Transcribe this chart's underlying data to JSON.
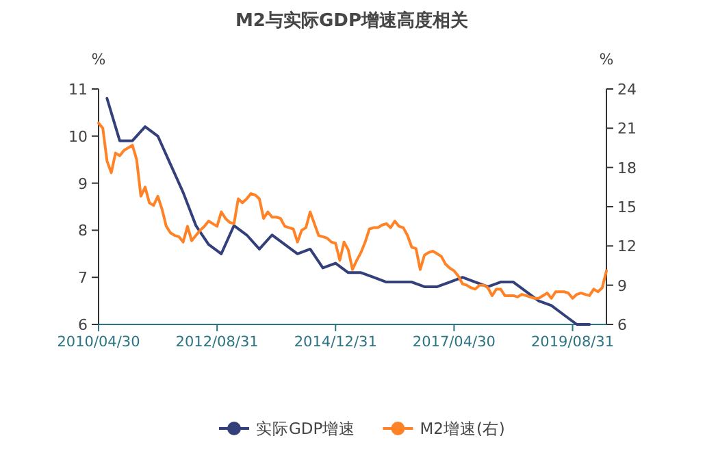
{
  "chart_data": {
    "type": "line",
    "title": "M2与实际GDP增速高度相关",
    "ylabel": "%",
    "y2label": "%",
    "xlim": [
      "2010-04",
      "2020-04"
    ],
    "xticks": [
      {
        "value": "2010-04",
        "label": "2010/04/30"
      },
      {
        "value": "2012-08",
        "label": "2012/08/31"
      },
      {
        "value": "2014-12",
        "label": "2014/12/31"
      },
      {
        "value": "2017-04",
        "label": "2017/04/30"
      },
      {
        "value": "2019-08",
        "label": "2019/08/31"
      }
    ],
    "ylim": [
      6,
      11
    ],
    "yticks": [
      6,
      7,
      8,
      9,
      10,
      11
    ],
    "y2lim": [
      6,
      24
    ],
    "y2ticks": [
      6,
      9,
      12,
      15,
      18,
      21,
      24
    ],
    "grid": false,
    "legend": "bottom",
    "series": [
      {
        "name": "实际GDP增速",
        "color": "#33407a",
        "x": [
          "2010-06",
          "2010-09",
          "2010-12",
          "2011-03",
          "2011-06",
          "2011-09",
          "2011-12",
          "2012-03",
          "2012-06",
          "2012-09",
          "2012-12",
          "2013-03",
          "2013-06",
          "2013-09",
          "2013-12",
          "2014-03",
          "2014-06",
          "2014-09",
          "2014-12",
          "2015-03",
          "2015-06",
          "2015-09",
          "2015-12",
          "2016-03",
          "2016-06",
          "2016-09",
          "2016-12",
          "2017-03",
          "2017-06",
          "2017-09",
          "2017-12",
          "2018-03",
          "2018-06",
          "2018-09",
          "2018-12",
          "2019-03",
          "2019-06",
          "2019-09",
          "2019-12"
        ],
        "values": [
          10.8,
          9.9,
          9.9,
          10.2,
          10.0,
          9.4,
          8.8,
          8.1,
          7.7,
          7.5,
          8.1,
          7.9,
          7.6,
          7.9,
          7.7,
          7.5,
          7.6,
          7.2,
          7.3,
          7.1,
          7.1,
          7.0,
          6.9,
          6.9,
          6.9,
          6.8,
          6.8,
          6.9,
          7.0,
          6.9,
          6.8,
          6.9,
          6.9,
          6.7,
          6.5,
          6.4,
          6.2,
          6.0,
          6.0
        ]
      },
      {
        "name": "M2增速(右)",
        "color": "#ff8326",
        "axis": "y2",
        "x": [
          "2010-04",
          "2010-05",
          "2010-06",
          "2010-07",
          "2010-08",
          "2010-09",
          "2010-10",
          "2010-11",
          "2010-12",
          "2011-01",
          "2011-02",
          "2011-03",
          "2011-04",
          "2011-05",
          "2011-06",
          "2011-07",
          "2011-08",
          "2011-09",
          "2011-10",
          "2011-11",
          "2011-12",
          "2012-01",
          "2012-02",
          "2012-03",
          "2012-04",
          "2012-05",
          "2012-06",
          "2012-07",
          "2012-08",
          "2012-09",
          "2012-10",
          "2012-11",
          "2012-12",
          "2013-01",
          "2013-02",
          "2013-03",
          "2013-04",
          "2013-05",
          "2013-06",
          "2013-07",
          "2013-08",
          "2013-09",
          "2013-10",
          "2013-11",
          "2013-12",
          "2014-01",
          "2014-02",
          "2014-03",
          "2014-04",
          "2014-05",
          "2014-06",
          "2014-07",
          "2014-08",
          "2014-09",
          "2014-10",
          "2014-11",
          "2014-12",
          "2015-01",
          "2015-02",
          "2015-03",
          "2015-04",
          "2015-05",
          "2015-06",
          "2015-07",
          "2015-08",
          "2015-09",
          "2015-10",
          "2015-11",
          "2015-12",
          "2016-01",
          "2016-02",
          "2016-03",
          "2016-04",
          "2016-05",
          "2016-06",
          "2016-07",
          "2016-08",
          "2016-09",
          "2016-10",
          "2016-11",
          "2016-12",
          "2017-01",
          "2017-02",
          "2017-03",
          "2017-04",
          "2017-05",
          "2017-06",
          "2017-07",
          "2017-08",
          "2017-09",
          "2017-10",
          "2017-11",
          "2017-12",
          "2018-01",
          "2018-02",
          "2018-03",
          "2018-04",
          "2018-05",
          "2018-06",
          "2018-07",
          "2018-08",
          "2018-09",
          "2018-10",
          "2018-11",
          "2018-12",
          "2019-01",
          "2019-02",
          "2019-03",
          "2019-04",
          "2019-05",
          "2019-06",
          "2019-07",
          "2019-08",
          "2019-09",
          "2019-10",
          "2019-11",
          "2019-12",
          "2020-01",
          "2020-02",
          "2020-03",
          "2020-04"
        ],
        "values": [
          21.4,
          21.0,
          18.5,
          17.6,
          19.1,
          18.9,
          19.3,
          19.5,
          19.7,
          18.6,
          15.8,
          16.5,
          15.3,
          15.1,
          15.8,
          14.8,
          13.5,
          13.0,
          12.8,
          12.7,
          12.3,
          13.5,
          12.4,
          12.8,
          13.2,
          13.5,
          13.9,
          13.7,
          13.5,
          14.6,
          14.1,
          13.8,
          13.7,
          15.6,
          15.3,
          15.6,
          16.0,
          15.9,
          15.6,
          14.1,
          14.6,
          14.2,
          14.2,
          14.1,
          13.5,
          13.4,
          13.3,
          12.3,
          13.2,
          13.4,
          14.6,
          13.7,
          12.8,
          12.7,
          12.6,
          12.3,
          12.2,
          10.9,
          12.3,
          11.7,
          10.2,
          10.9,
          11.5,
          12.3,
          13.3,
          13.4,
          13.4,
          13.6,
          13.7,
          13.4,
          13.9,
          13.5,
          13.4,
          12.8,
          11.9,
          11.8,
          10.2,
          11.3,
          11.5,
          11.6,
          11.4,
          11.2,
          10.6,
          10.3,
          10.1,
          9.7,
          9.1,
          9.0,
          8.8,
          8.7,
          9.0,
          9.0,
          8.8,
          8.2,
          8.7,
          8.7,
          8.2,
          8.2,
          8.2,
          8.1,
          8.3,
          8.2,
          8.1,
          8.0,
          8.0,
          8.2,
          8.4,
          8.0,
          8.5,
          8.5,
          8.5,
          8.4,
          8.0,
          8.3,
          8.4,
          8.3,
          8.2,
          8.7,
          8.5,
          8.8,
          10.1
        ]
      }
    ]
  }
}
